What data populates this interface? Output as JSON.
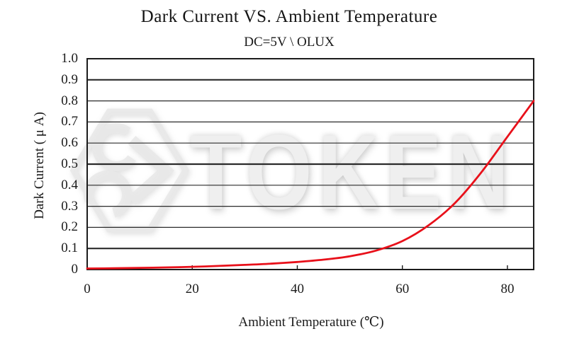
{
  "chart": {
    "title": "Dark Current VS. Ambient Temperature",
    "subtitle": "DC=5V \\ OLUX",
    "xlabel": "Ambient Temperature (℃)",
    "ylabel": "Dark Current ( μ A)"
  },
  "watermark": {
    "text": "TOKEN",
    "logo": "token-hexagon-logo"
  },
  "chart_data": {
    "type": "line",
    "title": "Dark Current VS. Ambient Temperature",
    "subtitle": "DC=5V \\ OLUX",
    "xlabel": "Ambient Temperature (℃)",
    "ylabel": "Dark Current ( μ A)",
    "xlim": [
      0,
      85
    ],
    "ylim": [
      0,
      1.0
    ],
    "x_ticks": [
      0,
      20,
      40,
      60,
      80
    ],
    "y_tick_labels": [
      "1.0",
      "0.9",
      "0.8",
      "0.7",
      "0.6",
      "0.5",
      "0.4",
      "0.3",
      "0.2",
      "0.1",
      "0"
    ],
    "grid": "horizontal",
    "major_gridlines": [
      0.1,
      0.5,
      0.9
    ],
    "grid_color": "#2b2b2b",
    "axis_color": "#1c1c1c",
    "line_color": "#e8101a",
    "legend": "none",
    "series": [
      {
        "name": "Dark Current",
        "x": [
          0,
          5,
          10,
          15,
          20,
          25,
          30,
          35,
          40,
          45,
          50,
          55,
          60,
          65,
          70,
          75,
          80,
          85
        ],
        "y": [
          0.005,
          0.006,
          0.008,
          0.01,
          0.013,
          0.017,
          0.022,
          0.028,
          0.036,
          0.047,
          0.063,
          0.09,
          0.135,
          0.21,
          0.315,
          0.46,
          0.63,
          0.8
        ]
      }
    ]
  }
}
